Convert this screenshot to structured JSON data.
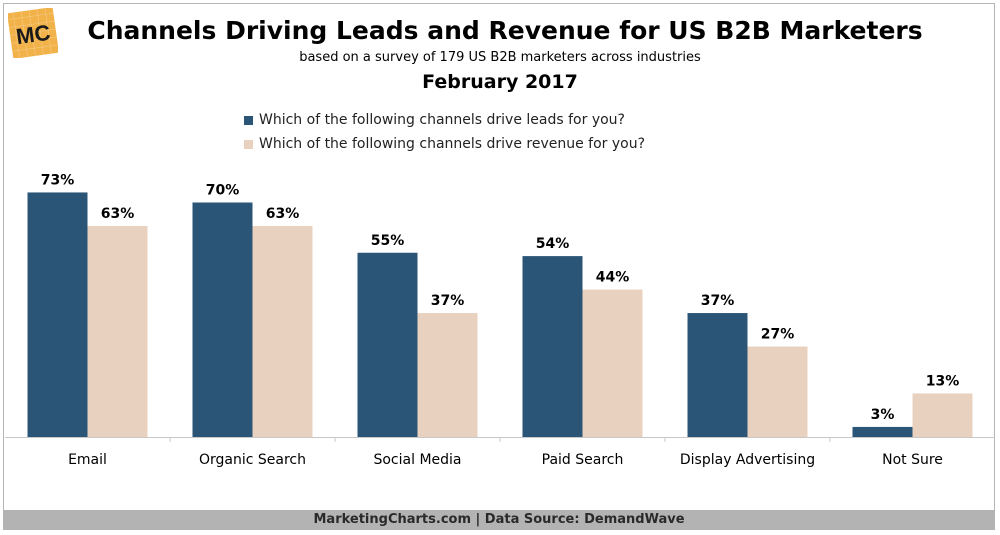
{
  "header": {
    "logo_text": "MC",
    "title": "Channels Driving Leads and Revenue for US B2B Marketers",
    "subtitle": "based on a survey of 179 US B2B marketers across industries",
    "date": "February 2017"
  },
  "footer": {
    "text": "MarketingCharts.com | Data Source: DemandWave"
  },
  "colors": {
    "leads": "#2b5576",
    "revenue": "#e8d2bf",
    "logo_bg": "#f2b24a",
    "footer_bg": "#b3b3b3"
  },
  "chart_data": {
    "type": "bar",
    "categories": [
      "Email",
      "Organic Search",
      "Social Media",
      "Paid Search",
      "Display Advertising",
      "Not Sure"
    ],
    "series": [
      {
        "name": "Which of the following channels drive leads for you?",
        "values": [
          73,
          70,
          55,
          54,
          37,
          3
        ]
      },
      {
        "name": "Which of the following channels drive revenue for you?",
        "values": [
          63,
          63,
          37,
          44,
          27,
          13
        ]
      }
    ],
    "data_labels": [
      [
        "73%",
        "70%",
        "55%",
        "54%",
        "37%",
        "3%"
      ],
      [
        "63%",
        "63%",
        "37%",
        "44%",
        "27%",
        "13%"
      ]
    ],
    "title": "Channels Driving Leads and Revenue for US B2B Marketers",
    "xlabel": "",
    "ylabel": "",
    "ylim": [
      0,
      100
    ],
    "grid": false,
    "legend_position": "top"
  }
}
